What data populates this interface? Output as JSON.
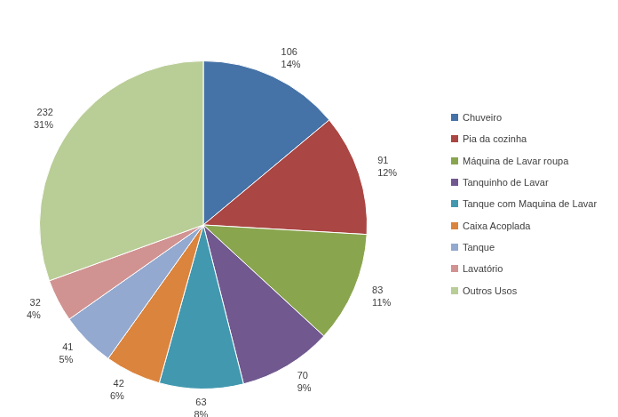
{
  "chart_data": {
    "type": "pie",
    "categories": [
      "Chuveiro",
      "Pia da cozinha",
      "Máquina de Lavar roupa",
      "Tanquinho de Lavar",
      "Tanque com Maquina de Lavar",
      "Caixa Acoplada",
      "Tanque",
      "Lavatório",
      "Outros Usos"
    ],
    "values": [
      106,
      91,
      83,
      70,
      63,
      42,
      41,
      32,
      232
    ],
    "percentages": [
      14,
      12,
      11,
      9,
      8,
      6,
      5,
      4,
      31
    ],
    "colors": [
      "#4572A7",
      "#AA4643",
      "#89A54E",
      "#71588F",
      "#4198AF",
      "#DB843D",
      "#93A9CF",
      "#D19392",
      "#B9CD96"
    ],
    "data_labels": true,
    "legend": "right"
  }
}
